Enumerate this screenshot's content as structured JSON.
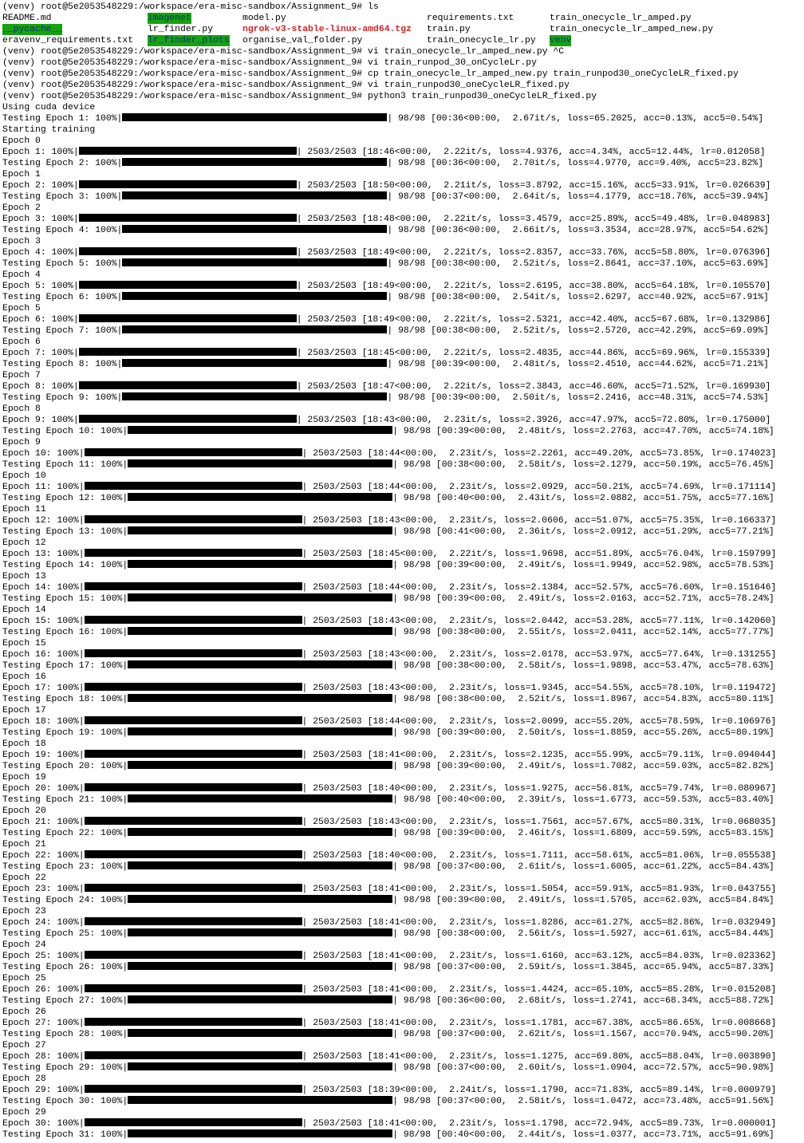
{
  "terminal": {
    "prompt": "(venv) root@5e2053548229:/workspace/era-misc-sandbox/Assignment_9#",
    "ls_command": "ls",
    "ls_rows": [
      [
        {
          "name": "README.md",
          "kind": "file"
        },
        {
          "name": "imagenet",
          "kind": "dir"
        },
        {
          "name": "model.py",
          "kind": "file"
        },
        {
          "name": "requirements.txt",
          "kind": "file"
        },
        {
          "name": "train_onecycle_lr_amped.py",
          "kind": "file"
        }
      ],
      [
        {
          "name": "__pycache__",
          "kind": "dir"
        },
        {
          "name": "lr_finder.py",
          "kind": "file"
        },
        {
          "name": "ngrok-v3-stable-linux-amd64.tgz",
          "kind": "archive"
        },
        {
          "name": "train.py",
          "kind": "file"
        },
        {
          "name": "train_onecycle_lr_amped_new.py",
          "kind": "file"
        }
      ],
      [
        {
          "name": "eravenv_requirements.txt",
          "kind": "file"
        },
        {
          "name": "lr_finder_plots",
          "kind": "dir"
        },
        {
          "name": "organise_val_folder.py",
          "kind": "file"
        },
        {
          "name": "train_onecycle_lr.py",
          "kind": "file"
        },
        {
          "name": "venv",
          "kind": "dir"
        }
      ]
    ],
    "commands": [
      "vi train_onecycle_lr_amped_new.py ^C",
      "vi train_runpod_30_onCycleLr.py",
      "cp train_onecycle_lr_amped_new.py train_runpod30_oneCycleLR_fixed.py",
      "vi train_runpod30_oneCycleLR_fixed.py",
      "python3 train_runpod30_oneCycleLR_fixed.py"
    ],
    "device_line": "Using cuda device",
    "training_start_line": "Starting training",
    "colors": {
      "background": "#ffffff",
      "text": "#000000",
      "dir_background": "#16a30e",
      "dir_text": "#0d2c85",
      "archive_text": "#d62222"
    }
  },
  "progress_log": [
    {
      "type": "test",
      "epoch": 1,
      "status": "98/98 [00:36<00:00,  2.67it/s, loss=65.2025, acc=0.13%, acc5=0.54%]"
    },
    {
      "type": "plain",
      "text": "Starting training"
    },
    {
      "type": "header",
      "text": "Epoch 0"
    },
    {
      "type": "train",
      "epoch": 1,
      "status": "2503/2503 [18:46<00:00,  2.22it/s, loss=4.9376, acc=4.34%, acc5=12.44%, lr=0.012058]"
    },
    {
      "type": "test",
      "epoch": 2,
      "status": "98/98 [00:36<00:00,  2.70it/s, loss=4.9770, acc=9.40%, acc5=23.82%]"
    },
    {
      "type": "header",
      "text": "Epoch 1"
    },
    {
      "type": "train",
      "epoch": 2,
      "status": "2503/2503 [18:50<00:00,  2.21it/s, loss=3.8792, acc=15.16%, acc5=33.91%, lr=0.026639]"
    },
    {
      "type": "test",
      "epoch": 3,
      "status": "98/98 [00:37<00:00,  2.64it/s, loss=4.1779, acc=18.76%, acc5=39.94%]"
    },
    {
      "type": "header",
      "text": "Epoch 2"
    },
    {
      "type": "train",
      "epoch": 3,
      "status": "2503/2503 [18:48<00:00,  2.22it/s, loss=3.4579, acc=25.89%, acc5=49.48%, lr=0.048983]"
    },
    {
      "type": "test",
      "epoch": 4,
      "status": "98/98 [00:36<00:00,  2.66it/s, loss=3.3534, acc=28.97%, acc5=54.62%]"
    },
    {
      "type": "header",
      "text": "Epoch 3"
    },
    {
      "type": "train",
      "epoch": 4,
      "status": "2503/2503 [18:49<00:00,  2.22it/s, loss=2.8357, acc=33.76%, acc5=58.80%, lr=0.076396]"
    },
    {
      "type": "test",
      "epoch": 5,
      "status": "98/98 [00:38<00:00,  2.52it/s, loss=2.8641, acc=37.10%, acc5=63.69%]"
    },
    {
      "type": "header",
      "text": "Epoch 4"
    },
    {
      "type": "train",
      "epoch": 5,
      "status": "2503/2503 [18:49<00:00,  2.22it/s, loss=2.6195, acc=38.80%, acc5=64.18%, lr=0.105570]"
    },
    {
      "type": "test",
      "epoch": 6,
      "status": "98/98 [00:38<00:00,  2.54it/s, loss=2.6297, acc=40.92%, acc5=67.91%]"
    },
    {
      "type": "header",
      "text": "Epoch 5"
    },
    {
      "type": "train",
      "epoch": 6,
      "status": "2503/2503 [18:49<00:00,  2.22it/s, loss=2.5321, acc=42.40%, acc5=67.68%, lr=0.132986]"
    },
    {
      "type": "test",
      "epoch": 7,
      "status": "98/98 [00:38<00:00,  2.52it/s, loss=2.5720, acc=42.29%, acc5=69.09%]"
    },
    {
      "type": "header",
      "text": "Epoch 6"
    },
    {
      "type": "train",
      "epoch": 7,
      "status": "2503/2503 [18:45<00:00,  2.22it/s, loss=2.4835, acc=44.86%, acc5=69.96%, lr=0.155339]"
    },
    {
      "type": "test",
      "epoch": 8,
      "status": "98/98 [00:39<00:00,  2.48it/s, loss=2.4510, acc=44.62%, acc5=71.21%]"
    },
    {
      "type": "header",
      "text": "Epoch 7"
    },
    {
      "type": "train",
      "epoch": 8,
      "status": "2503/2503 [18:47<00:00,  2.22it/s, loss=2.3843, acc=46.60%, acc5=71.52%, lr=0.169930]"
    },
    {
      "type": "test",
      "epoch": 9,
      "status": "98/98 [00:39<00:00,  2.50it/s, loss=2.2416, acc=48.31%, acc5=74.53%]"
    },
    {
      "type": "header",
      "text": "Epoch 8"
    },
    {
      "type": "train",
      "epoch": 9,
      "status": "2503/2503 [18:43<00:00,  2.23it/s, loss=2.3926, acc=47.97%, acc5=72.80%, lr=0.175000]"
    },
    {
      "type": "test",
      "epoch": 10,
      "status": "98/98 [00:39<00:00,  2.48it/s, loss=2.2763, acc=47.70%, acc5=74.18%]"
    },
    {
      "type": "header",
      "text": "Epoch 9"
    },
    {
      "type": "train",
      "epoch": 10,
      "status": "2503/2503 [18:44<00:00,  2.23it/s, loss=2.2261, acc=49.20%, acc5=73.85%, lr=0.174023]"
    },
    {
      "type": "test",
      "epoch": 11,
      "status": "98/98 [00:38<00:00,  2.58it/s, loss=2.1279, acc=50.19%, acc5=76.45%]"
    },
    {
      "type": "header",
      "text": "Epoch 10"
    },
    {
      "type": "train",
      "epoch": 11,
      "status": "2503/2503 [18:44<00:00,  2.23it/s, loss=2.0929, acc=50.21%, acc5=74.69%, lr=0.171114]"
    },
    {
      "type": "test",
      "epoch": 12,
      "status": "98/98 [00:40<00:00,  2.43it/s, loss=2.0882, acc=51.75%, acc5=77.16%]"
    },
    {
      "type": "header",
      "text": "Epoch 11"
    },
    {
      "type": "train",
      "epoch": 12,
      "status": "2503/2503 [18:43<00:00,  2.23it/s, loss=2.0606, acc=51.07%, acc5=75.35%, lr=0.166337]"
    },
    {
      "type": "test",
      "epoch": 13,
      "status": "98/98 [00:41<00:00,  2.36it/s, loss=2.0912, acc=51.29%, acc5=77.21%]"
    },
    {
      "type": "header",
      "text": "Epoch 12"
    },
    {
      "type": "train",
      "epoch": 13,
      "status": "2503/2503 [18:45<00:00,  2.22it/s, loss=1.9698, acc=51.89%, acc5=76.04%, lr=0.159799]"
    },
    {
      "type": "test",
      "epoch": 14,
      "status": "98/98 [00:39<00:00,  2.49it/s, loss=1.9949, acc=52.98%, acc5=78.53%]"
    },
    {
      "type": "header",
      "text": "Epoch 13"
    },
    {
      "type": "train",
      "epoch": 14,
      "status": "2503/2503 [18:44<00:00,  2.23it/s, loss=2.1384, acc=52.57%, acc5=76.60%, lr=0.151646]"
    },
    {
      "type": "test",
      "epoch": 15,
      "status": "98/98 [00:39<00:00,  2.49it/s, loss=2.0163, acc=52.71%, acc5=78.24%]"
    },
    {
      "type": "header",
      "text": "Epoch 14"
    },
    {
      "type": "train",
      "epoch": 15,
      "status": "2503/2503 [18:43<00:00,  2.23it/s, loss=2.0442, acc=53.28%, acc5=77.11%, lr=0.142060]"
    },
    {
      "type": "test",
      "epoch": 16,
      "status": "98/98 [00:38<00:00,  2.55it/s, loss=2.0411, acc=52.14%, acc5=77.77%]"
    },
    {
      "type": "header",
      "text": "Epoch 15"
    },
    {
      "type": "train",
      "epoch": 16,
      "status": "2503/2503 [18:43<00:00,  2.23it/s, loss=2.0178, acc=53.97%, acc5=77.64%, lr=0.131255]"
    },
    {
      "type": "test",
      "epoch": 17,
      "status": "98/98 [00:38<00:00,  2.58it/s, loss=1.9898, acc=53.47%, acc5=78.63%]"
    },
    {
      "type": "header",
      "text": "Epoch 16"
    },
    {
      "type": "train",
      "epoch": 17,
      "status": "2503/2503 [18:43<00:00,  2.23it/s, loss=1.9345, acc=54.55%, acc5=78.10%, lr=0.119472]"
    },
    {
      "type": "test",
      "epoch": 18,
      "status": "98/98 [00:38<00:00,  2.52it/s, loss=1.8967, acc=54.83%, acc5=80.11%]"
    },
    {
      "type": "header",
      "text": "Epoch 17"
    },
    {
      "type": "train",
      "epoch": 18,
      "status": "2503/2503 [18:44<00:00,  2.23it/s, loss=2.0099, acc=55.20%, acc5=78.59%, lr=0.106976]"
    },
    {
      "type": "test",
      "epoch": 19,
      "status": "98/98 [00:39<00:00,  2.50it/s, loss=1.8859, acc=55.26%, acc5=80.19%]"
    },
    {
      "type": "header",
      "text": "Epoch 18"
    },
    {
      "type": "train",
      "epoch": 19,
      "status": "2503/2503 [18:41<00:00,  2.23it/s, loss=2.1235, acc=55.99%, acc5=79.11%, lr=0.094044]"
    },
    {
      "type": "test",
      "epoch": 20,
      "status": "98/98 [00:39<00:00,  2.49it/s, loss=1.7082, acc=59.03%, acc5=82.82%]"
    },
    {
      "type": "header",
      "text": "Epoch 19"
    },
    {
      "type": "train",
      "epoch": 20,
      "status": "2503/2503 [18:40<00:00,  2.23it/s, loss=1.9275, acc=56.81%, acc5=79.74%, lr=0.080967]"
    },
    {
      "type": "test",
      "epoch": 21,
      "status": "98/98 [00:40<00:00,  2.39it/s, loss=1.6773, acc=59.53%, acc5=83.40%]"
    },
    {
      "type": "header",
      "text": "Epoch 20"
    },
    {
      "type": "train",
      "epoch": 21,
      "status": "2503/2503 [18:43<00:00,  2.23it/s, loss=1.7561, acc=57.67%, acc5=80.31%, lr=0.068035]"
    },
    {
      "type": "test",
      "epoch": 22,
      "status": "98/98 [00:39<00:00,  2.46it/s, loss=1.6809, acc=59.59%, acc5=83.15%]"
    },
    {
      "type": "header",
      "text": "Epoch 21"
    },
    {
      "type": "train",
      "epoch": 22,
      "status": "2503/2503 [18:40<00:00,  2.23it/s, loss=1.7111, acc=58.61%, acc5=81.06%, lr=0.055538]"
    },
    {
      "type": "test",
      "epoch": 23,
      "status": "98/98 [00:37<00:00,  2.61it/s, loss=1.6005, acc=61.22%, acc5=84.43%]"
    },
    {
      "type": "header",
      "text": "Epoch 22"
    },
    {
      "type": "train",
      "epoch": 23,
      "status": "2503/2503 [18:41<00:00,  2.23it/s, loss=1.5054, acc=59.91%, acc5=81.93%, lr=0.043755]"
    },
    {
      "type": "test",
      "epoch": 24,
      "status": "98/98 [00:39<00:00,  2.49it/s, loss=1.5705, acc=62.03%, acc5=84.84%]"
    },
    {
      "type": "header",
      "text": "Epoch 23"
    },
    {
      "type": "train",
      "epoch": 24,
      "status": "2503/2503 [18:41<00:00,  2.23it/s, loss=1.8286, acc=61.27%, acc5=82.86%, lr=0.032949]"
    },
    {
      "type": "test",
      "epoch": 25,
      "status": "98/98 [00:38<00:00,  2.56it/s, loss=1.5927, acc=61.61%, acc5=84.44%]"
    },
    {
      "type": "header",
      "text": "Epoch 24"
    },
    {
      "type": "train",
      "epoch": 25,
      "status": "2503/2503 [18:41<00:00,  2.23it/s, loss=1.6160, acc=63.12%, acc5=84.03%, lr=0.023362]"
    },
    {
      "type": "test",
      "epoch": 26,
      "status": "98/98 [00:37<00:00,  2.59it/s, loss=1.3845, acc=65.94%, acc5=87.33%]"
    },
    {
      "type": "header",
      "text": "Epoch 25"
    },
    {
      "type": "train",
      "epoch": 26,
      "status": "2503/2503 [18:41<00:00,  2.23it/s, loss=1.4424, acc=65.10%, acc5=85.28%, lr=0.015208]"
    },
    {
      "type": "test",
      "epoch": 27,
      "status": "98/98 [00:36<00:00,  2.68it/s, loss=1.2741, acc=68.34%, acc5=88.72%]"
    },
    {
      "type": "header",
      "text": "Epoch 26"
    },
    {
      "type": "train",
      "epoch": 27,
      "status": "2503/2503 [18:41<00:00,  2.23it/s, loss=1.1781, acc=67.38%, acc5=86.65%, lr=0.008668]"
    },
    {
      "type": "test",
      "epoch": 28,
      "status": "98/98 [00:37<00:00,  2.62it/s, loss=1.1567, acc=70.94%, acc5=90.20%]"
    },
    {
      "type": "header",
      "text": "Epoch 27"
    },
    {
      "type": "train",
      "epoch": 28,
      "status": "2503/2503 [18:41<00:00,  2.23it/s, loss=1.1275, acc=69.80%, acc5=88.04%, lr=0.003890]"
    },
    {
      "type": "test",
      "epoch": 29,
      "status": "98/98 [00:37<00:00,  2.60it/s, loss=1.0904, acc=72.57%, acc5=90.98%]"
    },
    {
      "type": "header",
      "text": "Epoch 28"
    },
    {
      "type": "train",
      "epoch": 29,
      "status": "2503/2503 [18:39<00:00,  2.24it/s, loss=1.1790, acc=71.83%, acc5=89.14%, lr=0.000979]"
    },
    {
      "type": "test",
      "epoch": 30,
      "status": "98/98 [00:37<00:00,  2.58it/s, loss=1.0472, acc=73.48%, acc5=91.56%]"
    },
    {
      "type": "header",
      "text": "Epoch 29"
    },
    {
      "type": "train",
      "epoch": 30,
      "status": "2503/2503 [18:41<00:00,  2.23it/s, loss=1.1798, acc=72.94%, acc5=89.73%, lr=0.000001]"
    },
    {
      "type": "test",
      "epoch": 31,
      "status": "98/98 [00:40<00:00,  2.44it/s, loss=1.0377, acc=73.71%, acc5=91.69%]"
    }
  ]
}
